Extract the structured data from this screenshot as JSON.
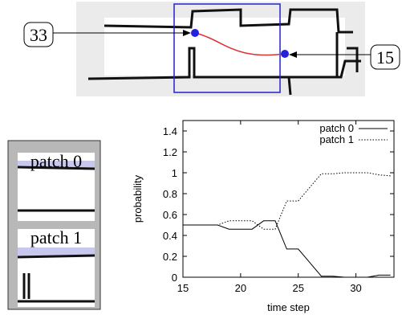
{
  "map": {
    "labels": [
      "33",
      "15"
    ]
  },
  "patches": {
    "labels": [
      "patch 0",
      "patch 1"
    ]
  },
  "chart_data": {
    "type": "line",
    "x_label": "time step",
    "y_label": "probability",
    "x": [
      15,
      16,
      17,
      18,
      19,
      20,
      21,
      22,
      23,
      24,
      25,
      26,
      27,
      28,
      29,
      30,
      31,
      32,
      33
    ],
    "series": [
      {
        "name": "patch 0",
        "color": "#000000",
        "dash": "solid",
        "values": [
          0.5,
          0.5,
          0.5,
          0.5,
          0.46,
          0.46,
          0.46,
          0.54,
          0.54,
          0.27,
          0.27,
          0.14,
          0.01,
          0.01,
          0,
          0,
          0,
          0.02,
          0.02
        ]
      },
      {
        "name": "patch 1",
        "color": "#000000",
        "dash": "dotted",
        "values": [
          0.5,
          0.5,
          0.5,
          0.5,
          0.54,
          0.54,
          0.54,
          0.46,
          0.46,
          0.73,
          0.73,
          0.86,
          0.99,
          0.99,
          1,
          1,
          1,
          0.98,
          0.97
        ]
      }
    ],
    "xlim": [
      15,
      33.3
    ],
    "xticks": [
      15,
      20,
      25,
      30
    ],
    "ylim": [
      0,
      1.5
    ],
    "yticks": [
      0,
      0.2,
      0.4,
      0.6,
      0.8,
      1,
      1.2,
      1.4
    ],
    "legend": "upper right"
  }
}
